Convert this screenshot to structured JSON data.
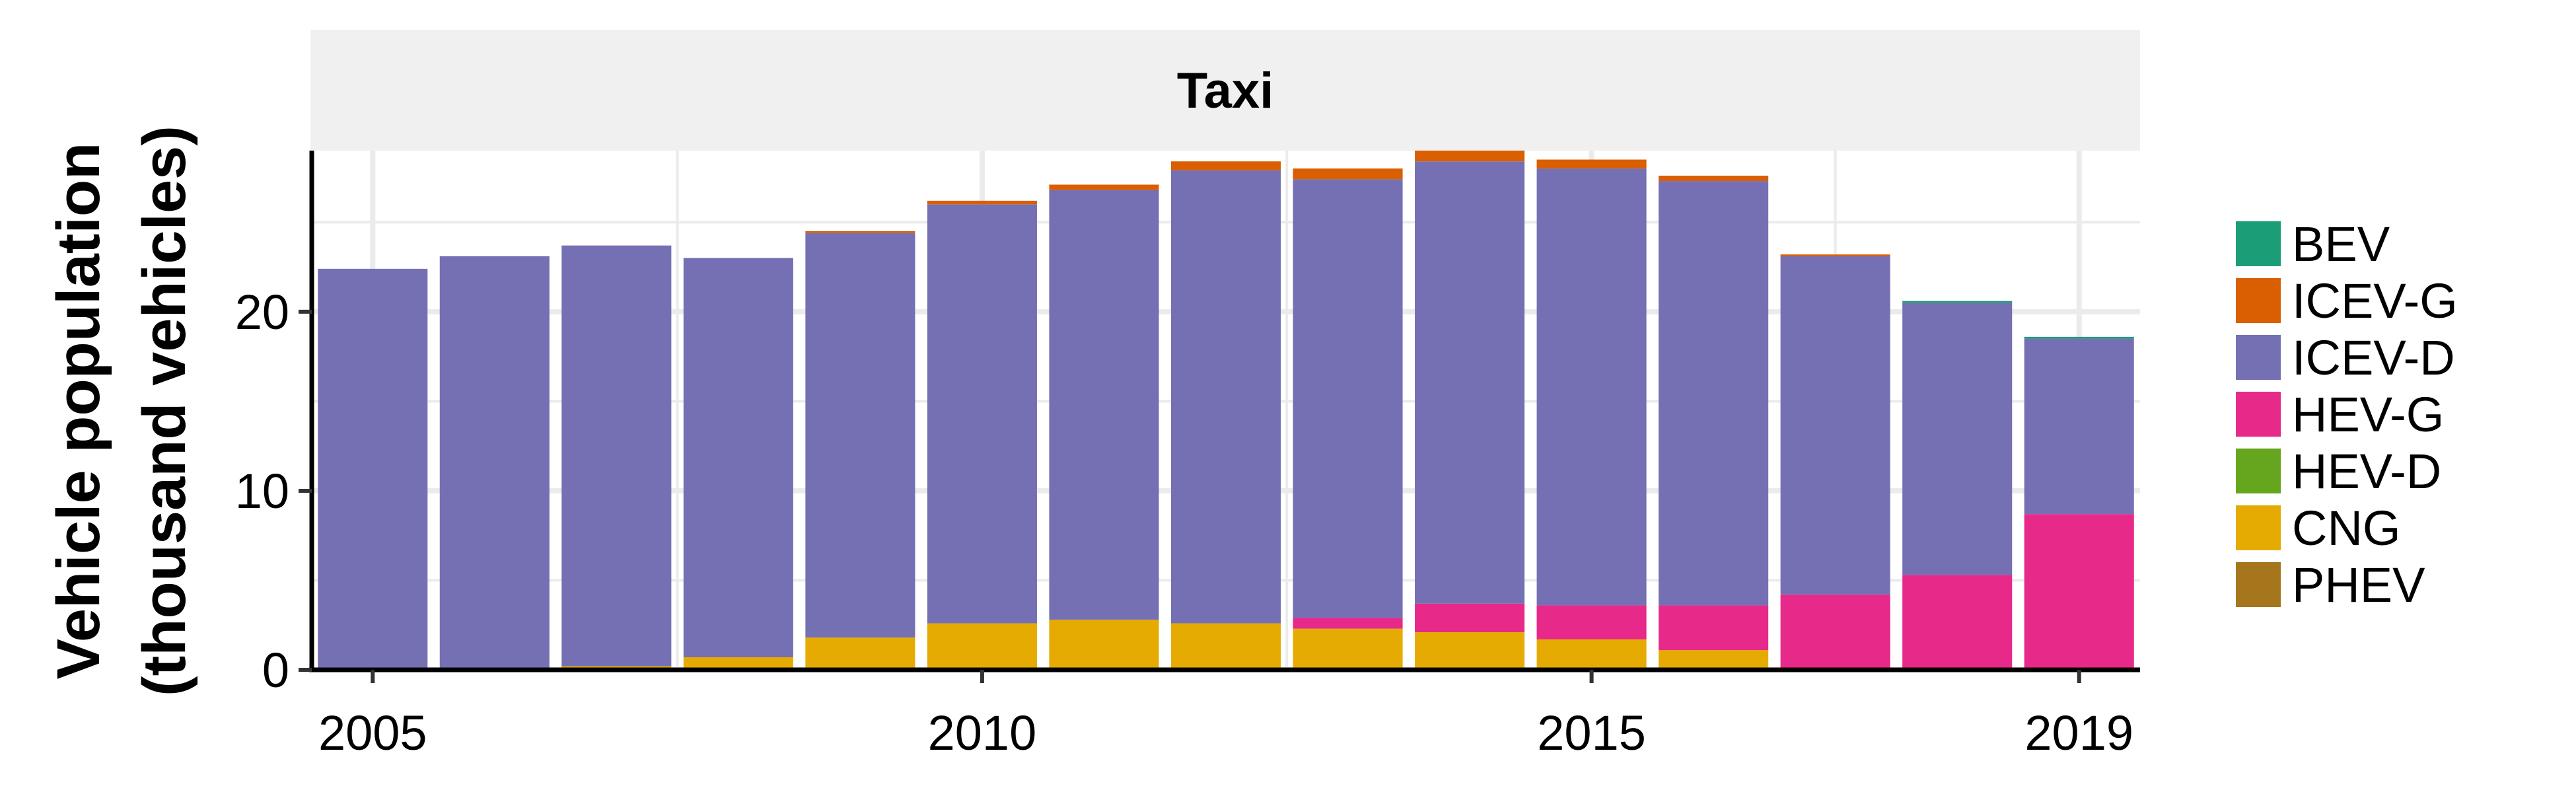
{
  "chart_data": {
    "type": "bar",
    "stacked": true,
    "facet_title": "Taxi",
    "xlabel": "",
    "ylabel_lines": [
      "Vehicle population",
      "(thousand vehicles)"
    ],
    "x_tick_labels": [
      "2005",
      "2010",
      "2015",
      "2019"
    ],
    "y_tick_labels": [
      "0",
      "10",
      "20"
    ],
    "ylim": [
      0,
      29
    ],
    "xlim": [
      2004.5,
      2019.5
    ],
    "categories": [
      2005,
      2006,
      2007,
      2008,
      2009,
      2010,
      2011,
      2012,
      2013,
      2014,
      2015,
      2016,
      2017,
      2018,
      2019
    ],
    "grid": true,
    "legend_position": "right",
    "series": [
      {
        "name": "PHEV",
        "color": "#a6761d",
        "values": [
          0,
          0,
          0,
          0,
          0,
          0,
          0,
          0,
          0,
          0,
          0,
          0,
          0,
          0,
          0
        ]
      },
      {
        "name": "CNG",
        "color": "#e6ab02",
        "values": [
          0.1,
          0.1,
          0.2,
          0.7,
          1.8,
          2.6,
          2.8,
          2.6,
          2.3,
          2.1,
          1.7,
          1.1,
          0,
          0,
          0
        ]
      },
      {
        "name": "HEV-D",
        "color": "#66a61e",
        "values": [
          0,
          0,
          0,
          0,
          0,
          0,
          0,
          0,
          0,
          0,
          0,
          0,
          0,
          0,
          0
        ]
      },
      {
        "name": "HEV-G",
        "color": "#e7298a",
        "values": [
          0,
          0,
          0,
          0,
          0,
          0,
          0,
          0,
          0.6,
          1.6,
          1.9,
          2.5,
          4.2,
          5.3,
          8.7
        ]
      },
      {
        "name": "ICEV-D",
        "color": "#7570b3",
        "values": [
          22.3,
          23.0,
          23.5,
          22.3,
          22.6,
          23.4,
          24.0,
          25.3,
          24.5,
          24.7,
          24.4,
          23.7,
          18.9,
          15.2,
          9.8
        ]
      },
      {
        "name": "ICEV-G",
        "color": "#d95f02",
        "values": [
          0,
          0,
          0,
          0,
          0.1,
          0.2,
          0.3,
          0.5,
          0.6,
          0.6,
          0.5,
          0.3,
          0.1,
          0,
          0
        ]
      },
      {
        "name": "BEV",
        "color": "#1b9e77",
        "values": [
          0,
          0,
          0,
          0,
          0,
          0,
          0,
          0,
          0,
          0,
          0,
          0,
          0,
          0.1,
          0.1
        ]
      }
    ],
    "legend_order": [
      "BEV",
      "ICEV-G",
      "ICEV-D",
      "HEV-G",
      "HEV-D",
      "CNG",
      "PHEV"
    ]
  }
}
